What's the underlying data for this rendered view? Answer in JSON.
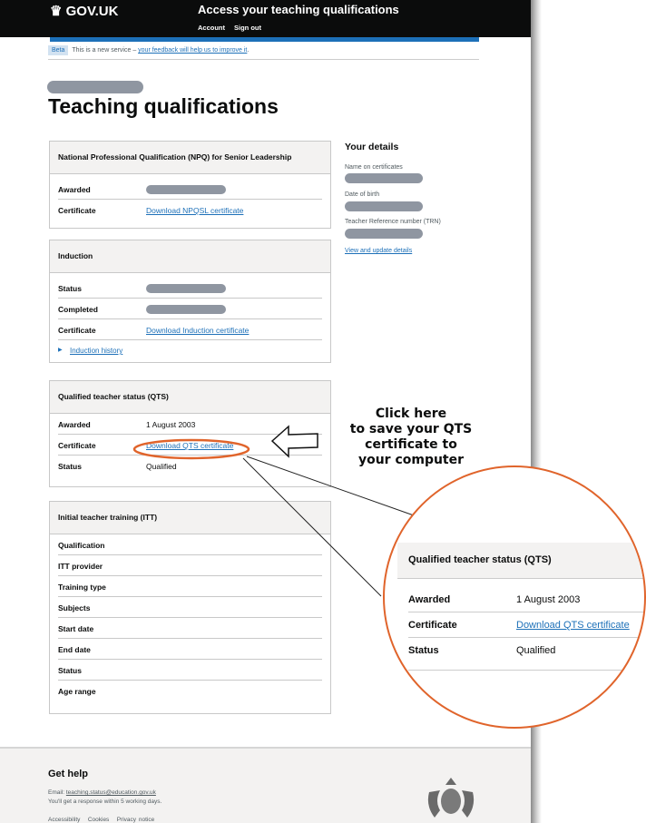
{
  "header": {
    "logo": "GOV.UK",
    "service": "Access your teaching qualifications",
    "nav": [
      "Account",
      "Sign out"
    ]
  },
  "phase": {
    "tag": "Beta",
    "text": "This is a new service – ",
    "link": "your feedback will help us to improve it",
    "end": "."
  },
  "page_title": "Teaching qualifications",
  "cards": {
    "npq": {
      "title": "National Professional Qualification (NPQ) for Senior Leadership",
      "awarded_label": "Awarded",
      "certificate_label": "Certificate",
      "certificate_link": "Download NPQSL certificate"
    },
    "induction": {
      "title": "Induction",
      "status_label": "Status",
      "completed_label": "Completed",
      "certificate_label": "Certificate",
      "certificate_link": "Download Induction certificate",
      "history_link": "Induction history"
    },
    "qts": {
      "title": "Qualified teacher status (QTS)",
      "awarded_label": "Awarded",
      "awarded": "1 August 2003",
      "certificate_label": "Certificate",
      "certificate_link": "Download QTS certificate",
      "status_label": "Status",
      "status": "Qualified"
    },
    "itt": {
      "title": "Initial teacher training (ITT)",
      "rows": [
        "Qualification",
        "ITT provider",
        "Training type",
        "Subjects",
        "Start date",
        "End date",
        "Status",
        "Age range"
      ]
    }
  },
  "details": {
    "title": "Your details",
    "name_label": "Name on certificates",
    "dob_label": "Date of birth",
    "trn_label": "Teacher Reference number (TRN)",
    "update_link": "View and update details"
  },
  "callout": {
    "line1": "Click here",
    "line2": "to save your QTS",
    "line3": "certificate to",
    "line4": "your computer",
    "accent": "#e0642b"
  },
  "footer": {
    "title": "Get help",
    "email_label": "Email: ",
    "email": "teaching.status@education.gov.uk",
    "response": "You'll get a response within 5 working days.",
    "links": [
      "Accessibility",
      "Cookies",
      "Privacy notice"
    ]
  }
}
